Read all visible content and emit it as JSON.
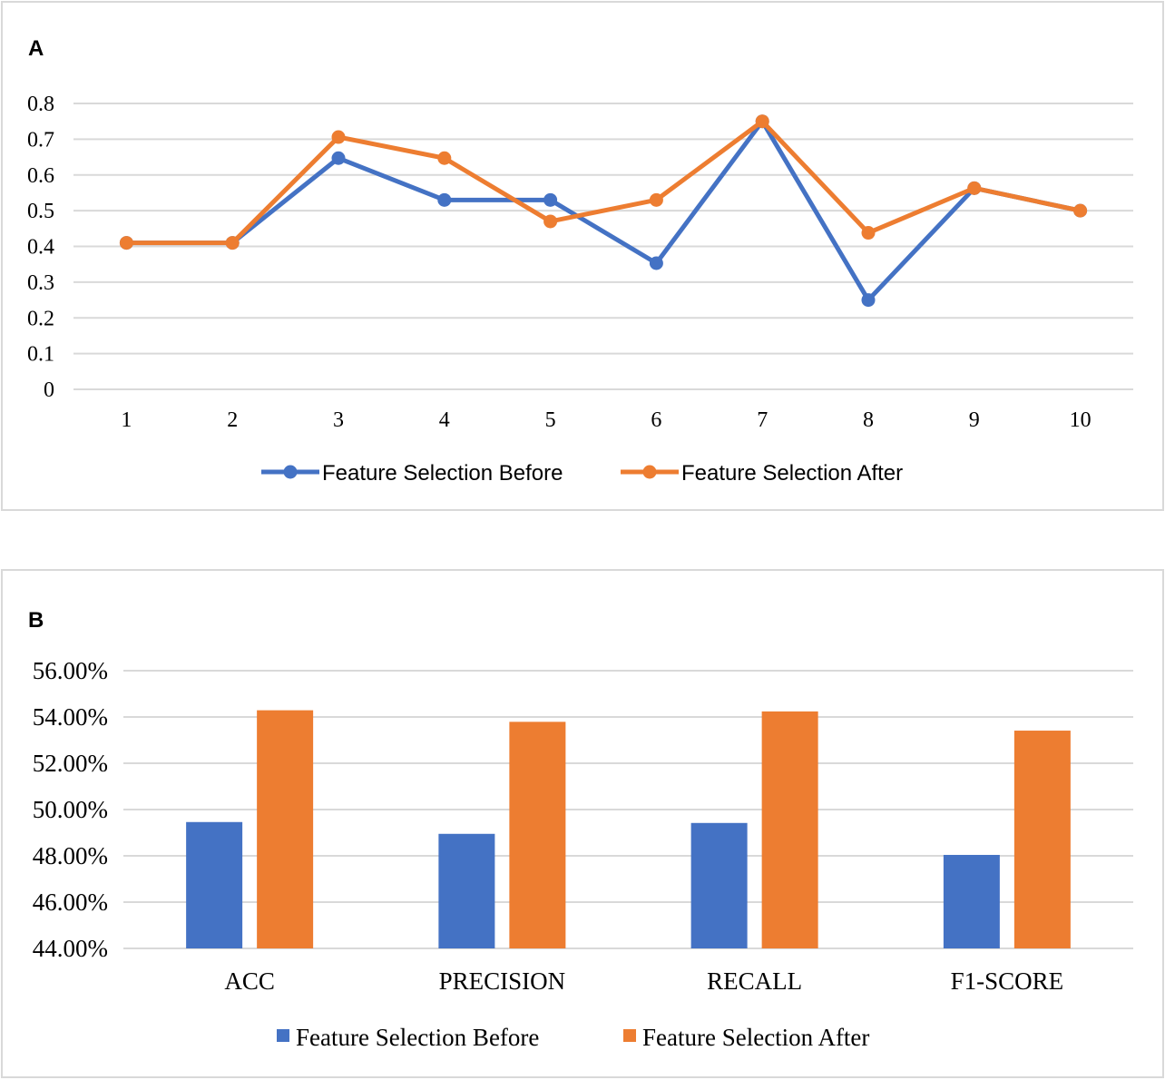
{
  "chart_data": [
    {
      "panel_label": "A",
      "type": "line",
      "title": "",
      "xlabel": "",
      "ylabel": "",
      "x": [
        "1",
        "2",
        "3",
        "4",
        "5",
        "6",
        "7",
        "8",
        "9",
        "10"
      ],
      "ylim": [
        0,
        0.8
      ],
      "yticks": [
        "0",
        "0.1",
        "0.2",
        "0.3",
        "0.4",
        "0.5",
        "0.6",
        "0.7",
        "0.8"
      ],
      "grid": true,
      "legend_position": "bottom",
      "series": [
        {
          "name": "Feature Selection Before",
          "color": "#4472c4",
          "values": [
            0.41,
            0.41,
            0.647,
            0.53,
            0.53,
            0.353,
            0.75,
            0.25,
            0.563,
            0.5
          ]
        },
        {
          "name": "Feature Selection After",
          "color": "#ed7d31",
          "values": [
            0.41,
            0.41,
            0.706,
            0.647,
            0.47,
            0.53,
            0.75,
            0.438,
            0.563,
            0.5
          ]
        }
      ]
    },
    {
      "panel_label": "B",
      "type": "bar",
      "title": "",
      "xlabel": "",
      "ylabel": "",
      "categories": [
        "ACC",
        "PRECISION",
        "RECALL",
        "F1-SCORE"
      ],
      "ylim": [
        44,
        56
      ],
      "yticks": [
        "44.00%",
        "46.00%",
        "48.00%",
        "50.00%",
        "52.00%",
        "54.00%",
        "56.00%"
      ],
      "grid": true,
      "legend_position": "bottom",
      "series": [
        {
          "name": "Feature Selection Before",
          "color": "#4472c4",
          "values": [
            49.46,
            48.95,
            49.42,
            48.04
          ]
        },
        {
          "name": "Feature Selection After",
          "color": "#ed7d31",
          "values": [
            54.29,
            53.79,
            54.24,
            53.41
          ]
        }
      ]
    }
  ]
}
